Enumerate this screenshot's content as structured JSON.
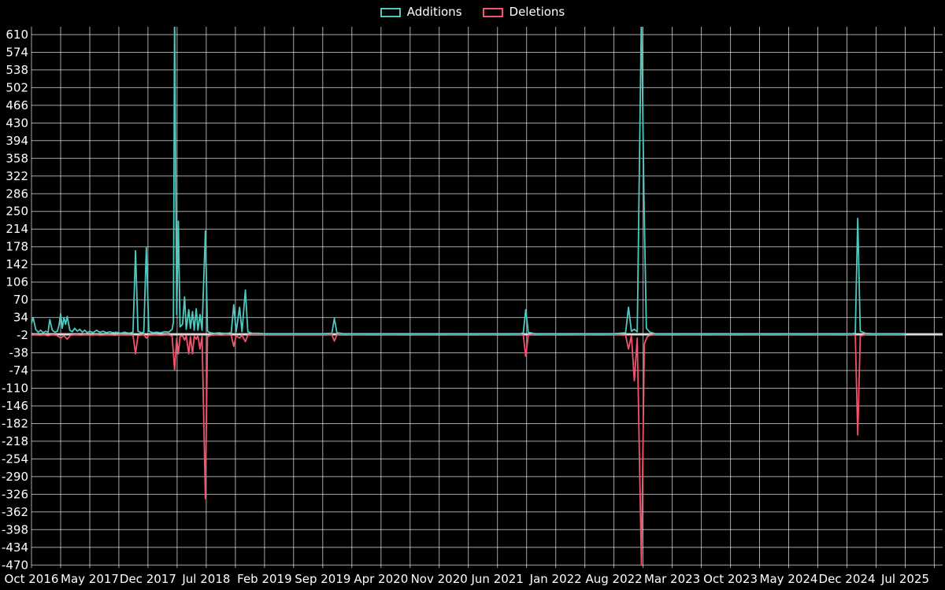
{
  "chart_data": {
    "type": "line",
    "title": "",
    "xlabel": "",
    "ylabel": "",
    "x_unit": "months since Oct 2016",
    "xlim": [
      0,
      109.5
    ],
    "ylim": [
      -476,
      626
    ],
    "grid": true,
    "minor_x_grid_step": 3.5,
    "legend_position": "top-center",
    "x_ticks": [
      {
        "pos": 0,
        "label": "Oct 2016"
      },
      {
        "pos": 7,
        "label": "May 2017"
      },
      {
        "pos": 14,
        "label": "Dec 2017"
      },
      {
        "pos": 21,
        "label": "Jul 2018"
      },
      {
        "pos": 28,
        "label": "Feb 2019"
      },
      {
        "pos": 35,
        "label": "Sep 2019"
      },
      {
        "pos": 42,
        "label": "Apr 2020"
      },
      {
        "pos": 49,
        "label": "Nov 2020"
      },
      {
        "pos": 56,
        "label": "Jun 2021"
      },
      {
        "pos": 63,
        "label": "Jan 2022"
      },
      {
        "pos": 70,
        "label": "Aug 2022"
      },
      {
        "pos": 77,
        "label": "Mar 2023"
      },
      {
        "pos": 84,
        "label": "Oct 2023"
      },
      {
        "pos": 91,
        "label": "May 2024"
      },
      {
        "pos": 98,
        "label": "Dec 2024"
      },
      {
        "pos": 105,
        "label": "Jul 2025"
      }
    ],
    "y_ticks": [
      610,
      574,
      538,
      502,
      466,
      430,
      394,
      358,
      322,
      286,
      250,
      214,
      178,
      142,
      106,
      70,
      34,
      -2,
      -38,
      -74,
      -110,
      -146,
      -182,
      -218,
      -254,
      -290,
      -326,
      -362,
      -398,
      -434,
      -470
    ],
    "colors": {
      "background": "#000000",
      "grid": "rgba(255,255,255,0.65)",
      "zero_line": "#d9d9d9",
      "text": "#ffffff",
      "additions": "#4ec9c0",
      "deletions": "#f2546b"
    },
    "series": [
      {
        "name": "Additions",
        "color": "#4ec9c0",
        "points": [
          [
            0,
            22
          ],
          [
            0.2,
            34
          ],
          [
            0.5,
            10
          ],
          [
            0.8,
            4
          ],
          [
            1.1,
            8
          ],
          [
            1.4,
            3
          ],
          [
            1.7,
            6
          ],
          [
            2,
            4
          ],
          [
            2.2,
            30
          ],
          [
            2.5,
            8
          ],
          [
            2.8,
            4
          ],
          [
            3.1,
            6
          ],
          [
            3.3,
            18
          ],
          [
            3.5,
            42
          ],
          [
            3.7,
            12
          ],
          [
            3.9,
            34
          ],
          [
            4.1,
            20
          ],
          [
            4.3,
            36
          ],
          [
            4.6,
            8
          ],
          [
            4.9,
            5
          ],
          [
            5.2,
            12
          ],
          [
            5.5,
            6
          ],
          [
            5.8,
            10
          ],
          [
            6.1,
            4
          ],
          [
            6.4,
            8
          ],
          [
            6.7,
            3
          ],
          [
            7,
            6
          ],
          [
            7.4,
            3
          ],
          [
            7.8,
            8
          ],
          [
            8.2,
            4
          ],
          [
            8.6,
            6
          ],
          [
            9,
            3
          ],
          [
            9.4,
            5
          ],
          [
            9.8,
            3
          ],
          [
            10.2,
            4
          ],
          [
            10.7,
            2
          ],
          [
            11.2,
            4
          ],
          [
            11.7,
            2
          ],
          [
            12.2,
            4
          ],
          [
            12.5,
            170
          ],
          [
            12.8,
            6
          ],
          [
            13.2,
            3
          ],
          [
            13.5,
            4
          ],
          [
            13.8,
            176
          ],
          [
            14.1,
            6
          ],
          [
            14.6,
            3
          ],
          [
            15,
            4
          ],
          [
            15.5,
            3
          ],
          [
            16,
            5
          ],
          [
            16.5,
            4
          ],
          [
            16.9,
            10
          ],
          [
            17.05,
            25
          ],
          [
            17.2,
            650
          ],
          [
            17.45,
            40
          ],
          [
            17.65,
            230
          ],
          [
            17.85,
            15
          ],
          [
            18.15,
            20
          ],
          [
            18.4,
            76
          ],
          [
            18.6,
            10
          ],
          [
            18.9,
            50
          ],
          [
            19.1,
            12
          ],
          [
            19.35,
            46
          ],
          [
            19.55,
            8
          ],
          [
            19.8,
            52
          ],
          [
            20,
            8
          ],
          [
            20.25,
            40
          ],
          [
            20.5,
            8
          ],
          [
            20.9,
            210
          ],
          [
            21.15,
            6
          ],
          [
            21.5,
            3
          ],
          [
            22,
            2
          ],
          [
            22.5,
            3
          ],
          [
            23,
            2
          ],
          [
            23.5,
            2
          ],
          [
            24,
            3
          ],
          [
            24.3,
            60
          ],
          [
            24.6,
            5
          ],
          [
            25,
            55
          ],
          [
            25.3,
            5
          ],
          [
            25.7,
            90
          ],
          [
            26,
            5
          ],
          [
            26.5,
            2
          ],
          [
            27.2,
            2
          ],
          [
            28,
            1
          ],
          [
            29,
            1
          ],
          [
            30,
            1
          ],
          [
            31,
            1
          ],
          [
            32,
            1
          ],
          [
            33,
            1
          ],
          [
            34,
            1
          ],
          [
            35,
            1
          ],
          [
            36.1,
            2
          ],
          [
            36.4,
            32
          ],
          [
            36.7,
            3
          ],
          [
            37.5,
            1
          ],
          [
            39,
            1
          ],
          [
            41,
            1
          ],
          [
            43,
            1
          ],
          [
            45,
            1
          ],
          [
            47,
            1
          ],
          [
            49,
            1
          ],
          [
            51,
            1
          ],
          [
            53,
            1
          ],
          [
            55,
            1
          ],
          [
            57,
            1
          ],
          [
            58.8,
            1
          ],
          [
            59.1,
            3
          ],
          [
            59.4,
            50
          ],
          [
            59.7,
            4
          ],
          [
            60.5,
            1
          ],
          [
            62,
            1
          ],
          [
            64,
            1
          ],
          [
            66,
            1
          ],
          [
            68,
            1
          ],
          [
            70,
            1
          ],
          [
            71.4,
            3
          ],
          [
            71.75,
            55
          ],
          [
            72.1,
            6
          ],
          [
            72.45,
            10
          ],
          [
            72.8,
            5
          ],
          [
            73.3,
            655
          ],
          [
            73.6,
            280
          ],
          [
            73.9,
            12
          ],
          [
            74.3,
            4
          ],
          [
            75,
            1
          ],
          [
            77,
            1
          ],
          [
            79,
            1
          ],
          [
            81,
            1
          ],
          [
            83,
            1
          ],
          [
            85,
            1
          ],
          [
            87,
            1
          ],
          [
            89,
            1
          ],
          [
            91,
            1
          ],
          [
            93,
            1
          ],
          [
            95,
            1
          ],
          [
            97,
            1
          ],
          [
            98.7,
            1
          ],
          [
            99,
            3
          ],
          [
            99.3,
            236
          ],
          [
            99.6,
            6
          ],
          [
            100.2,
            2
          ],
          [
            101,
            1
          ],
          [
            103,
            1
          ],
          [
            105,
            1
          ]
        ]
      },
      {
        "name": "Deletions",
        "color": "#f2546b",
        "points": [
          [
            0,
            -2
          ],
          [
            0.5,
            -1
          ],
          [
            1,
            -2
          ],
          [
            1.5,
            -1
          ],
          [
            2,
            -3
          ],
          [
            2.5,
            -1
          ],
          [
            3,
            -2
          ],
          [
            3.5,
            -8
          ],
          [
            3.9,
            -3
          ],
          [
            4.3,
            -10
          ],
          [
            4.7,
            -2
          ],
          [
            5.3,
            -1
          ],
          [
            5.9,
            -2
          ],
          [
            6.5,
            -1
          ],
          [
            7.1,
            -2
          ],
          [
            7.7,
            -1
          ],
          [
            8.3,
            -2
          ],
          [
            9.1,
            -1
          ],
          [
            10,
            -2
          ],
          [
            11,
            -1
          ],
          [
            12.2,
            -2
          ],
          [
            12.5,
            -40
          ],
          [
            12.8,
            -3
          ],
          [
            13.5,
            -1
          ],
          [
            13.8,
            -8
          ],
          [
            14.1,
            -2
          ],
          [
            14.8,
            -1
          ],
          [
            15.6,
            -2
          ],
          [
            16.4,
            -1
          ],
          [
            16.9,
            -4
          ],
          [
            17.2,
            -72
          ],
          [
            17.45,
            -8
          ],
          [
            17.65,
            -40
          ],
          [
            17.85,
            -5
          ],
          [
            18.15,
            -3
          ],
          [
            18.4,
            -12
          ],
          [
            18.6,
            -3
          ],
          [
            18.9,
            -40
          ],
          [
            19.1,
            -5
          ],
          [
            19.35,
            -40
          ],
          [
            19.55,
            -4
          ],
          [
            19.8,
            -10
          ],
          [
            20,
            -3
          ],
          [
            20.25,
            -30
          ],
          [
            20.5,
            -4
          ],
          [
            20.9,
            -335
          ],
          [
            21.15,
            -5
          ],
          [
            21.6,
            -2
          ],
          [
            22.2,
            -1
          ],
          [
            22.8,
            -2
          ],
          [
            23.4,
            -1
          ],
          [
            24,
            -2
          ],
          [
            24.3,
            -25
          ],
          [
            24.6,
            -3
          ],
          [
            25,
            -8
          ],
          [
            25.3,
            -2
          ],
          [
            25.7,
            -15
          ],
          [
            26,
            -2
          ],
          [
            26.6,
            -1
          ],
          [
            27.5,
            -1
          ],
          [
            28.5,
            -1
          ],
          [
            30,
            -1
          ],
          [
            32,
            -1
          ],
          [
            34,
            -1
          ],
          [
            35.5,
            -1
          ],
          [
            36.1,
            -1
          ],
          [
            36.4,
            -14
          ],
          [
            36.7,
            -1
          ],
          [
            37.5,
            0
          ],
          [
            39,
            -1
          ],
          [
            41,
            0
          ],
          [
            43,
            -1
          ],
          [
            45,
            0
          ],
          [
            47,
            -1
          ],
          [
            49,
            0
          ],
          [
            51,
            -1
          ],
          [
            53,
            0
          ],
          [
            55,
            -1
          ],
          [
            57,
            0
          ],
          [
            58.8,
            -1
          ],
          [
            59.1,
            -2
          ],
          [
            59.4,
            -45
          ],
          [
            59.7,
            -2
          ],
          [
            60.5,
            0
          ],
          [
            62,
            -1
          ],
          [
            64,
            0
          ],
          [
            66,
            -1
          ],
          [
            68,
            0
          ],
          [
            70,
            -1
          ],
          [
            71.4,
            -2
          ],
          [
            71.75,
            -30
          ],
          [
            72.1,
            -3
          ],
          [
            72.45,
            -95
          ],
          [
            72.8,
            -8
          ],
          [
            73.3,
            -470
          ],
          [
            73.65,
            -20
          ],
          [
            74,
            -5
          ],
          [
            74.4,
            -2
          ],
          [
            75,
            -1
          ],
          [
            77,
            0
          ],
          [
            79,
            -1
          ],
          [
            81,
            0
          ],
          [
            83,
            -1
          ],
          [
            85,
            0
          ],
          [
            87,
            -1
          ],
          [
            89,
            0
          ],
          [
            91,
            -1
          ],
          [
            93,
            0
          ],
          [
            95,
            -1
          ],
          [
            97,
            0
          ],
          [
            98.7,
            -1
          ],
          [
            99,
            -2
          ],
          [
            99.3,
            -205
          ],
          [
            99.6,
            -4
          ],
          [
            100.2,
            -1
          ],
          [
            101,
            0
          ],
          [
            103,
            -1
          ],
          [
            105,
            0
          ]
        ]
      }
    ]
  }
}
